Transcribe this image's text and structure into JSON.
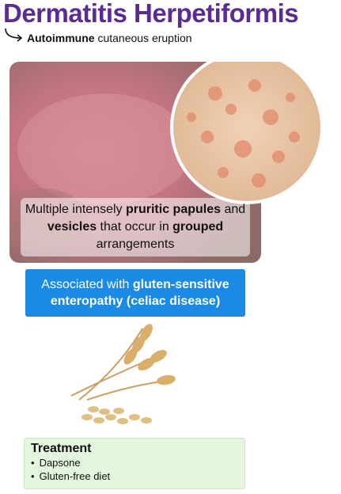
{
  "header": {
    "title": "Dermatitis Herpetiformis",
    "subtitle": [
      {
        "text": "Autoimmune",
        "bold": true
      },
      {
        "text": " cutaneous eruption",
        "bold": false
      }
    ]
  },
  "description": [
    {
      "text": "Multiple intensely ",
      "bold": false
    },
    {
      "text": "pruritic papules",
      "bold": true
    },
    {
      "text": " and ",
      "bold": false
    },
    {
      "text": "vesicles",
      "bold": true
    },
    {
      "text": " that occur in ",
      "bold": false
    },
    {
      "text": "grouped",
      "bold": true
    },
    {
      "text": " arrangements",
      "bold": false
    }
  ],
  "association": [
    {
      "text": "Associated with ",
      "bold": false
    },
    {
      "text": "gluten-sensitive enteropathy (celiac disease)",
      "bold": true
    }
  ],
  "treatment": {
    "title": "Treatment",
    "items": [
      "Dapsone",
      "Gluten-free diet"
    ]
  }
}
